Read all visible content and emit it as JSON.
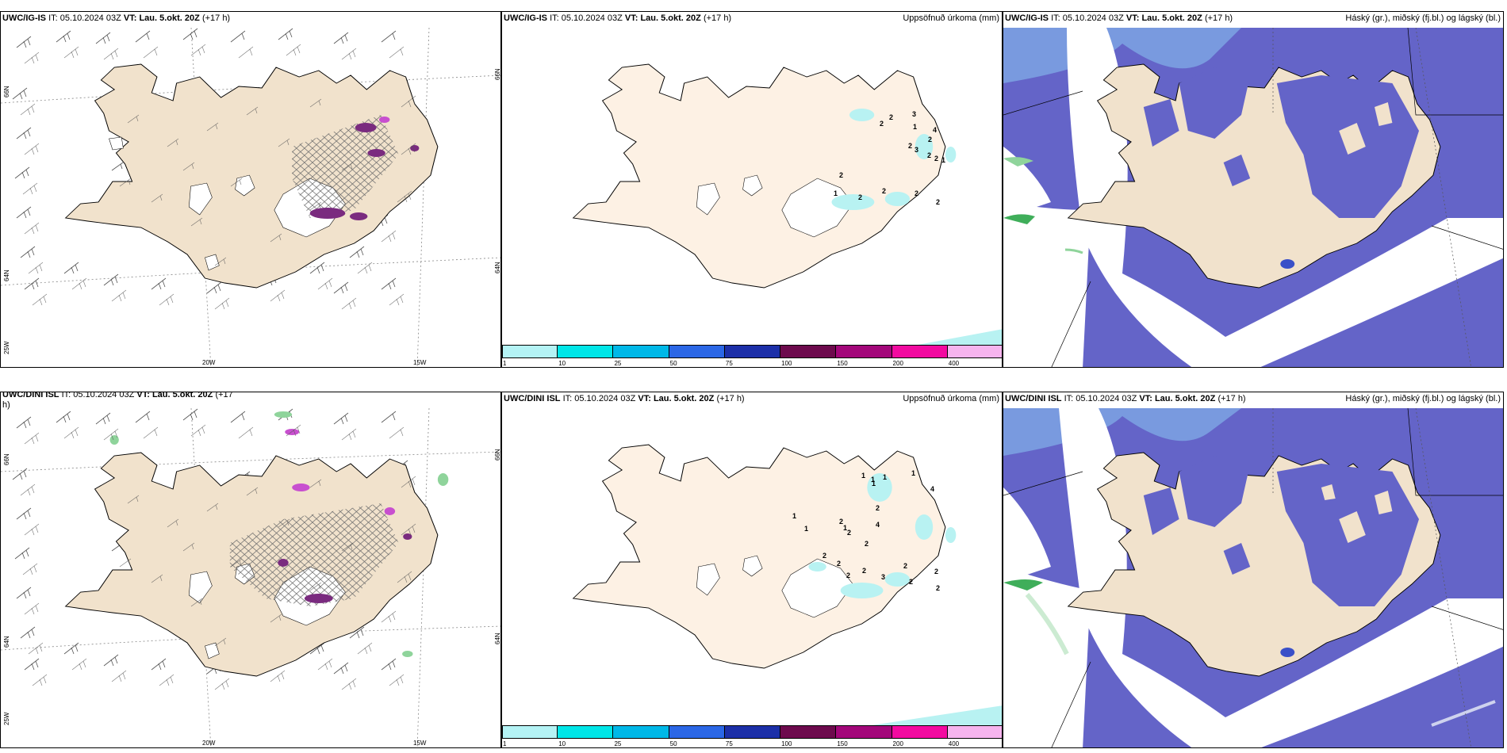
{
  "colors": {
    "land_wind": "#f1e2cc",
    "land_precip": "#fdf1e4",
    "cloud_low": "#6464c8",
    "cloud_mid": "#4a6ee0",
    "cloud_light": "#8ecff5",
    "precip_light": "#b8f2f2",
    "hatch": "#6d6d6d",
    "purple": "#7a2b7f"
  },
  "rows": [
    {
      "model": "UWC/IG-IS",
      "it_label": "IT:",
      "it_value": "05.10.2024 03Z",
      "vt_label": "VT:",
      "vt_value": "Lau. 5.okt. 20Z",
      "lead": "(+17 h)",
      "precip_numbers": [
        "2",
        "2",
        "3",
        "1",
        "2",
        "3",
        "4",
        "2",
        "2",
        "2",
        "1",
        "2",
        "1",
        "2",
        "2",
        "2",
        "2"
      ]
    },
    {
      "model": "UWC/DINI ISL",
      "it_label": "IT:",
      "it_value": "05.10.2024 03Z",
      "vt_label": "VT:",
      "vt_value": "Lau. 5.okt. 20Z",
      "lead": "(+17 h)",
      "lead_wrapped_part1": "(+17",
      "lead_wrapped_part2": "h)",
      "precip_numbers": [
        "1",
        "1",
        "1",
        "1",
        "2",
        "4",
        "1",
        "1",
        "1",
        "2",
        "1",
        "2",
        "2",
        "4",
        "2",
        "2",
        "2",
        "2",
        "3",
        "2",
        "2",
        "2",
        "2",
        "2"
      ]
    }
  ],
  "precip_title": "Uppsöfnuð úrkoma (mm)",
  "cloud_title": "Háský (gr.), miðský (fj.bl.) og lágský (bl.)",
  "lat_labels": {
    "top": "66N",
    "mid": "64N",
    "bottom": "25W"
  },
  "lat_labels_right": {
    "top": "66N",
    "mid": "64N"
  },
  "lon_labels": {
    "left": "20W",
    "right": "15W"
  },
  "legend": {
    "ticks": [
      "1",
      "10",
      "25",
      "50",
      "75",
      "100",
      "150",
      "200",
      "400"
    ],
    "colors": [
      "#b4f3f5",
      "#00e6e8",
      "#00b8e8",
      "#2b67e6",
      "#1c2fa8",
      "#6d0a4d",
      "#a3077a",
      "#f20aa0",
      "#f6b4ee"
    ]
  }
}
